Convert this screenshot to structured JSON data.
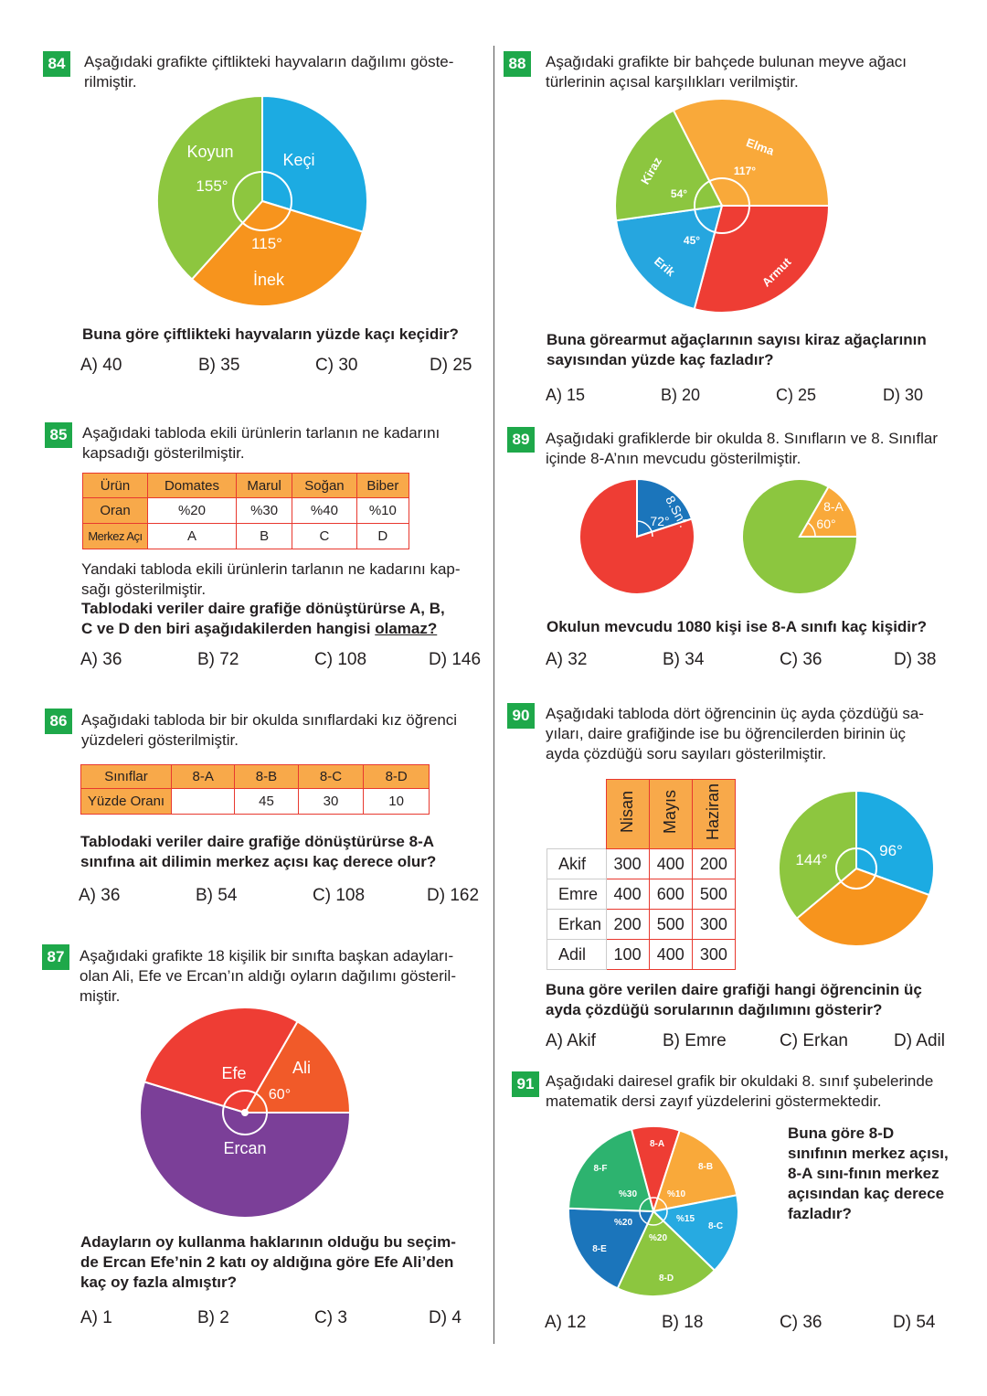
{
  "q84": {
    "number": "84",
    "lines": [
      "Aşağıdaki grafikte çiftlikteki hayvaların dağılımı göste-",
      "rilmiştir."
    ],
    "question": "Buna göre çiftlikteki hayvaların yüzde kaçı keçidir?",
    "options": [
      "A) 40",
      "B) 35",
      "C) 30",
      "D) 25"
    ]
  },
  "q85": {
    "number": "85",
    "lines": [
      "Aşağıdaki tabloda ekili ürünlerin tarlanın ne kadarını",
      "kapsadığı gösterilmiştir."
    ],
    "table": {
      "rows": [
        [
          "Ürün",
          "Domates",
          "Marul",
          "Soğan",
          "Biber"
        ],
        [
          "Oran",
          "%20",
          "%30",
          "%40",
          "%10"
        ],
        [
          "Merkez Açı",
          "A",
          "B",
          "C",
          "D"
        ]
      ]
    },
    "lines2": [
      "Yandaki tabloda ekili ürünlerin tarlanın ne kadarını kap-",
      "sağı gösterilmiştir."
    ],
    "question_lines": [
      "Tablodaki veriler daire grafiğe dönüştürürse  A, B,",
      "C ve D den biri aşağıdakilerden hangisi "
    ],
    "question_underlined": "olamaz?",
    "options": [
      "A) 36",
      "B) 72",
      "C) 108",
      "D) 146"
    ]
  },
  "q86": {
    "number": "86",
    "lines": [
      "Aşağıdaki tabloda bir bir okulda sınıflardaki kız öğrenci",
      "yüzdeleri gösterilmiştir."
    ],
    "table": {
      "rows": [
        [
          "Sınıflar",
          "8-A",
          "8-B",
          "8-C",
          "8-D"
        ],
        [
          "Yüzde Oranı",
          "",
          "45",
          "30",
          "10"
        ]
      ]
    },
    "question_lines": [
      "Tablodaki veriler daire grafiğe dönüştürürse 8-A",
      "sınıfına ait dilimin merkez açısı kaç derece olur?"
    ],
    "options": [
      "A) 36",
      "B) 54",
      "C) 108",
      "D) 162"
    ]
  },
  "q87": {
    "number": "87",
    "lines": [
      "Aşağıdaki grafikte 18 kişilik bir sınıfta başkan adayları-",
      "olan Ali, Efe ve Ercan’ın aldığı oyların dağılımı gösteril-",
      "miştir."
    ],
    "question_lines": [
      "Adayların oy kullanma haklarının olduğu bu seçim-",
      "de Ercan Efe’nin 2 katı oy aldığına göre Efe Ali’den",
      "kaç oy fazla almıştır?"
    ],
    "options": [
      "A) 1",
      "B) 2",
      "C) 3",
      "D) 4"
    ]
  },
  "q88": {
    "number": "88",
    "lines": [
      "Aşağıdaki grafikte bir bahçede bulunan meyve ağacı",
      "türlerinin açısal karşılıkları verilmiştir."
    ],
    "question_lines": [
      "Buna görearmut ağaçlarının sayısı kiraz ağaçlarının",
      "sayısından yüzde kaç fazladır?"
    ],
    "options": [
      "A) 15",
      "B) 20",
      "C) 25",
      "D) 30"
    ]
  },
  "q89": {
    "number": "89",
    "lines": [
      "Aşağıdaki grafiklerde bir okulda 8. Sınıfların ve 8. Sınıflar",
      "içinde 8-A’nın mevcudu gösterilmiştir."
    ],
    "question": "Okulun mevcudu 1080 kişi ise 8-A sınıfı kaç kişidir?",
    "options": [
      "A) 32",
      "B) 34",
      "C) 36",
      "D) 38"
    ]
  },
  "q90": {
    "number": "90",
    "lines": [
      "Aşağıdaki tabloda dört öğrencinin üç ayda çözdüğü sa-",
      "yıları, daire grafiğinde ise bu öğrencilerden birinin üç",
      "ayda çözdüğü soru sayıları gösterilmiştir."
    ],
    "table": {
      "headers": [
        "Nisan",
        "Mayıs",
        "Haziran"
      ],
      "rows": [
        [
          "Akif",
          "300",
          "400",
          "200"
        ],
        [
          "Emre",
          "400",
          "600",
          "500"
        ],
        [
          "Erkan",
          "200",
          "500",
          "300"
        ],
        [
          "Adil",
          "100",
          "400",
          "300"
        ]
      ]
    },
    "question_lines": [
      "Buna göre verilen daire grafiği hangi öğrencinin üç",
      "ayda çözdüğü sorularının dağılımını gösterir?"
    ],
    "options": [
      "A) Akif",
      "B) Emre",
      "C) Erkan",
      "D) Adil"
    ]
  },
  "q91": {
    "number": "91",
    "lines": [
      "Aşağıdaki dairesel grafik bir okuldaki 8. sınıf şubelerinde",
      "matematik dersi zayıf yüzdelerini göstermektedir."
    ],
    "question_lines": [
      "Buna göre 8-D",
      "sınıfının merkez açısı,",
      "8-A sını-fının merkez",
      "açısından kaç derece",
      "fazladır?"
    ],
    "options": [
      "A) 12",
      "B) 18",
      "C) 36",
      "D) 54"
    ]
  },
  "chart_data": [
    {
      "id": "pie84",
      "type": "pie",
      "labels": [
        "Keçi",
        "İnek",
        "Koyun"
      ],
      "angle_labels": [
        "",
        "115°",
        "155°"
      ],
      "colors": [
        "#1cabe2",
        "#f7941d",
        "#8dc63f"
      ]
    },
    {
      "id": "pie88",
      "type": "pie",
      "labels": [
        "Elma",
        "Armut",
        "Erik",
        "Kiraz"
      ],
      "angle_labels": [
        "117°",
        "",
        "45°",
        "54°"
      ],
      "colors": [
        "#f9a93a",
        "#ee3d34",
        "#26a6df",
        "#8cc63f"
      ]
    },
    {
      "id": "pie89a",
      "type": "pie",
      "labels": [
        "8.Snf.",
        ""
      ],
      "angle_labels": [
        "72°",
        ""
      ],
      "colors": [
        "#1b75bb",
        "#ee3d34"
      ]
    },
    {
      "id": "pie89b",
      "type": "pie",
      "labels": [
        "8-A",
        ""
      ],
      "angle_labels": [
        "60°",
        ""
      ],
      "colors": [
        "#f9a93a",
        "#8cc63f"
      ]
    },
    {
      "id": "pie90",
      "type": "pie",
      "labels": [
        "",
        "",
        ""
      ],
      "angle_labels": [
        "96°",
        "",
        "144°"
      ],
      "colors": [
        "#1cabe2",
        "#f7941d",
        "#8dc63f"
      ]
    },
    {
      "id": "pie87",
      "type": "pie",
      "labels": [
        "Ali",
        "Ercan",
        "Efe"
      ],
      "angle_labels": [
        "60°",
        "",
        ""
      ],
      "colors": [
        "#f15a29",
        "#7b3f98",
        "#ee3d34"
      ]
    },
    {
      "id": "pie91",
      "type": "pie",
      "labels": [
        "8-A",
        "8-B",
        "8-C",
        "8-D",
        "8-E",
        "8-F"
      ],
      "values_percent": [
        null,
        10,
        15,
        20,
        20,
        30
      ],
      "value_labels": [
        "",
        "%10",
        "%15",
        "%20",
        "%20",
        "%30"
      ],
      "colors": [
        "#ee3d34",
        "#f9a93a",
        "#27aae1",
        "#8cc63f",
        "#1b75bb",
        "#2db36f"
      ]
    }
  ]
}
